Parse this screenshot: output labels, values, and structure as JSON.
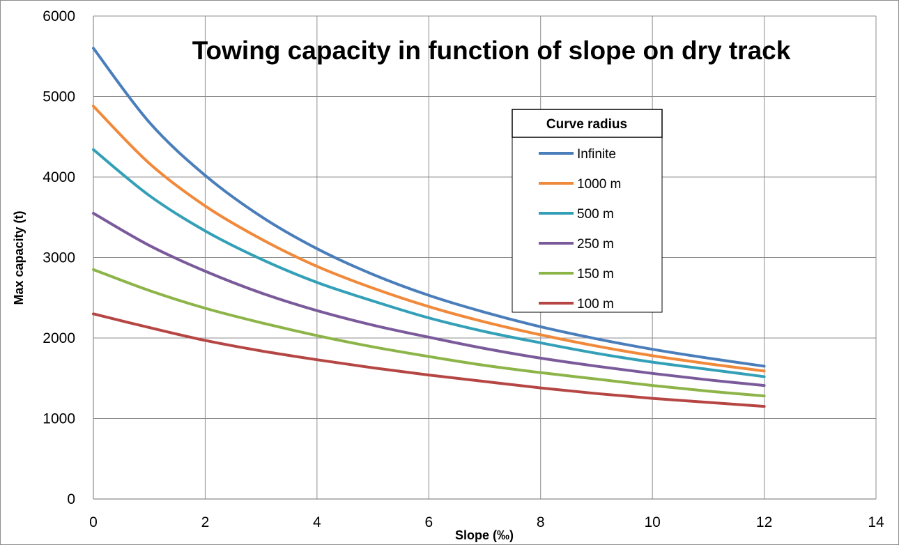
{
  "chart_data": {
    "type": "line",
    "title": "Towing capacity in function of slope on dry track",
    "xlabel": "Slope (‰)",
    "ylabel": "Max capacity (t)",
    "xlim": [
      0,
      14
    ],
    "ylim": [
      0,
      6000
    ],
    "x_ticks": [
      "0",
      "2",
      "4",
      "6",
      "8",
      "10",
      "12",
      "14"
    ],
    "y_ticks": [
      "0",
      "1000",
      "2000",
      "3000",
      "4000",
      "5000",
      "6000"
    ],
    "grid": true,
    "legend": {
      "title": "Curve radius",
      "placement": "right"
    },
    "x": [
      0,
      1,
      2,
      3,
      4,
      5,
      6,
      7,
      8,
      9,
      10,
      11,
      12
    ],
    "series": [
      {
        "name": "Infinite",
        "color": "#4a7ebb",
        "values": [
          5600,
          4680,
          4020,
          3510,
          3110,
          2790,
          2530,
          2320,
          2140,
          1990,
          1860,
          1750,
          1650
        ]
      },
      {
        "name": "1000 m",
        "color": "#f0893a",
        "values": [
          4880,
          4170,
          3640,
          3230,
          2890,
          2620,
          2390,
          2200,
          2040,
          1900,
          1780,
          1680,
          1590
        ]
      },
      {
        "name": "500 m",
        "color": "#33a0b8",
        "values": [
          4340,
          3770,
          3330,
          2980,
          2690,
          2460,
          2250,
          2080,
          1940,
          1810,
          1700,
          1610,
          1520
        ]
      },
      {
        "name": "250 m",
        "color": "#7a5a9a",
        "values": [
          3550,
          3150,
          2830,
          2560,
          2340,
          2160,
          2010,
          1870,
          1750,
          1650,
          1560,
          1480,
          1410
        ]
      },
      {
        "name": "150 m",
        "color": "#8db448",
        "values": [
          2850,
          2590,
          2370,
          2190,
          2030,
          1890,
          1770,
          1660,
          1570,
          1490,
          1410,
          1340,
          1280
        ]
      },
      {
        "name": "100 m",
        "color": "#b54643",
        "values": [
          2300,
          2130,
          1970,
          1840,
          1730,
          1630,
          1540,
          1460,
          1380,
          1310,
          1250,
          1200,
          1150
        ]
      }
    ]
  }
}
